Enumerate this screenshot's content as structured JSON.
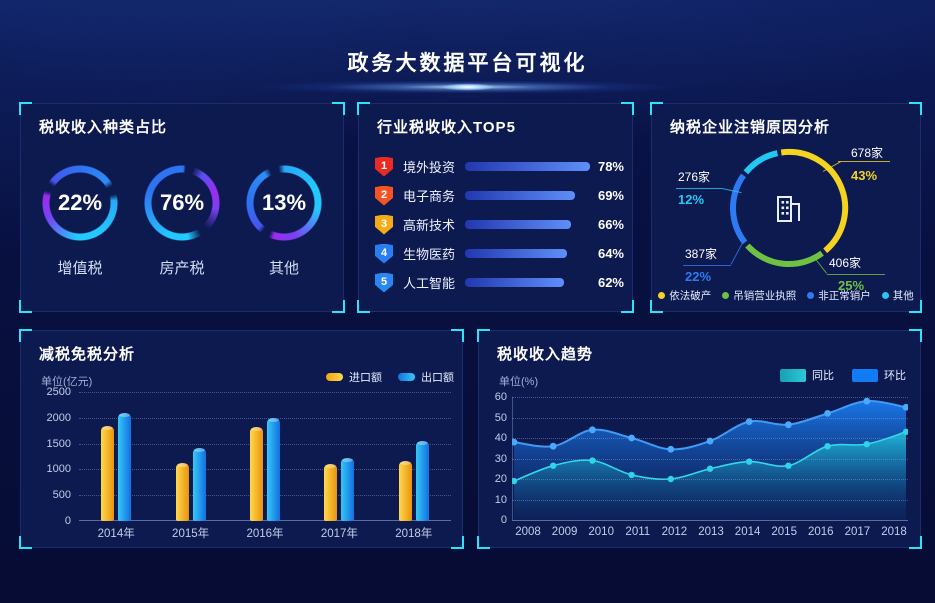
{
  "header": {
    "title": "政务大数据平台可视化"
  },
  "chart_data": [
    {
      "id": "tax_type_rings",
      "type": "pie",
      "title": "税收收入种类占比",
      "items": [
        {
          "label": "增值税",
          "value": 22,
          "display": "22%"
        },
        {
          "label": "房产税",
          "value": 76,
          "display": "76%"
        },
        {
          "label": "其他",
          "value": 13,
          "display": "13%"
        }
      ]
    },
    {
      "id": "industry_top5",
      "type": "bar",
      "title": "行业税收收入TOP5",
      "xlim": [
        0,
        100
      ],
      "rows": [
        {
          "rank": "1",
          "label": "境外投资",
          "value": 78,
          "display": "78%",
          "badge_color": "#ea2b24"
        },
        {
          "rank": "2",
          "label": "电子商务",
          "value": 69,
          "display": "69%",
          "badge_color": "#f55323"
        },
        {
          "rank": "3",
          "label": "高新技术",
          "value": 66,
          "display": "66%",
          "badge_color": "#f3ac16"
        },
        {
          "rank": "4",
          "label": "生物医药",
          "value": 64,
          "display": "64%",
          "badge_color": "#2a7df0"
        },
        {
          "rank": "5",
          "label": "人工智能",
          "value": 62,
          "display": "62%",
          "badge_color": "#2a86f0"
        }
      ]
    },
    {
      "id": "deregistration_donut",
      "type": "pie",
      "title": "纳税企业注销原因分析",
      "segments": [
        {
          "label": "依法破产",
          "count": "678家",
          "percent": "43%",
          "value": 43,
          "color": "#f5d321"
        },
        {
          "label": "吊销营业执照",
          "count": "406家",
          "percent": "25%",
          "value": 25,
          "color": "#6ec143"
        },
        {
          "label": "非正常销户",
          "count": "387家",
          "percent": "22%",
          "value": 22,
          "color": "#2e7af2"
        },
        {
          "label": "其他",
          "count": "276家",
          "percent": "12%",
          "value": 12,
          "color": "#22c8f2"
        }
      ]
    },
    {
      "id": "tax_reduction_bars",
      "type": "bar",
      "title": "减税免税分析",
      "unit": "单位(亿元)",
      "categories": [
        "2014年",
        "2015年",
        "2016年",
        "2017年",
        "2018年"
      ],
      "series": [
        {
          "name": "进口额",
          "values": [
            1850,
            1130,
            1820,
            1100,
            1160
          ]
        },
        {
          "name": "出口额",
          "values": [
            2100,
            1420,
            2000,
            1230,
            1560
          ]
        }
      ],
      "ylim": [
        0,
        2500
      ],
      "yticks": [
        0,
        500,
        1000,
        1500,
        2000,
        2500
      ]
    },
    {
      "id": "tax_trend_area",
      "type": "area",
      "title": "税收收入趋势",
      "unit": "单位(%)",
      "x": [
        "2008",
        "2009",
        "2010",
        "2011",
        "2012",
        "2013",
        "2014",
        "2015",
        "2016",
        "2017",
        "2018"
      ],
      "series": [
        {
          "name": "环比",
          "values": [
            38,
            36,
            44,
            40,
            34.5,
            38.5,
            48,
            46.5,
            52,
            58,
            55
          ],
          "line_color": "#3f9bf7"
        },
        {
          "name": "同比",
          "values": [
            19,
            26.5,
            29,
            22,
            20,
            25,
            28.5,
            26.5,
            36,
            37,
            43
          ],
          "line_color": "#33d8ea"
        }
      ],
      "ylim": [
        0,
        60
      ],
      "yticks": [
        0,
        10,
        20,
        30,
        40,
        50,
        60
      ]
    }
  ]
}
